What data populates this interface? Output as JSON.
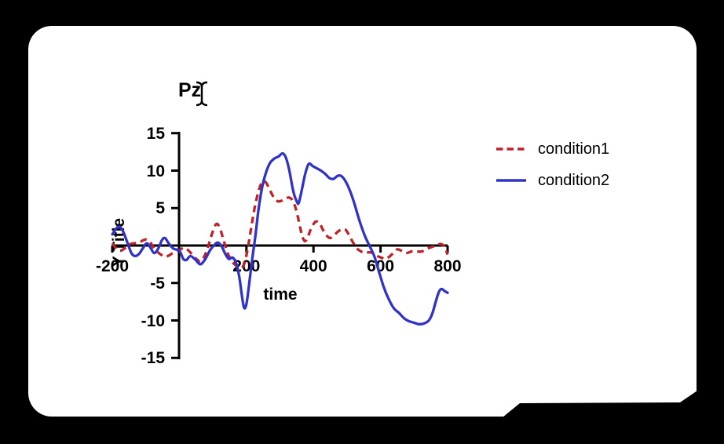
{
  "window": {
    "background": "#000000",
    "card_color": "#ffffff"
  },
  "icons": {
    "text-cursor-icon": "I-beam"
  },
  "chart_data": {
    "type": "line",
    "title": "Pz",
    "xlabel": "time",
    "ylabel": "Y Title",
    "xlim": [
      -200,
      800
    ],
    "ylim": [
      -15,
      15
    ],
    "x_ticks": [
      -200,
      200,
      400,
      600,
      800
    ],
    "y_ticks": [
      15,
      10,
      5,
      -5,
      -10,
      -15
    ],
    "grid": false,
    "legend_position": "top-right",
    "axis_color": "#000000",
    "series": [
      {
        "name": "condition1",
        "color": "#c02128",
        "style": "dashed",
        "points": [
          [
            -200,
            0.3
          ],
          [
            -190,
            -0.3
          ],
          [
            -180,
            -0.7
          ],
          [
            -170,
            -0.6
          ],
          [
            -158,
            -0.2
          ],
          [
            -146,
            0.2
          ],
          [
            -134,
            0.3
          ],
          [
            -120,
            0.4
          ],
          [
            -108,
            0.7
          ],
          [
            -98,
            0.8
          ],
          [
            -88,
            0.5
          ],
          [
            -76,
            -0.3
          ],
          [
            -64,
            -0.9
          ],
          [
            -52,
            -1.3
          ],
          [
            -42,
            -1.5
          ],
          [
            -30,
            -1.3
          ],
          [
            -16,
            -0.9
          ],
          [
            0,
            -0.6
          ],
          [
            14,
            -0.3
          ],
          [
            28,
            -0.7
          ],
          [
            42,
            -1.4
          ],
          [
            56,
            -2.0
          ],
          [
            64,
            -2.1
          ],
          [
            74,
            -1.5
          ],
          [
            84,
            -0.4
          ],
          [
            94,
            1.1
          ],
          [
            104,
            2.4
          ],
          [
            112,
            2.9
          ],
          [
            121,
            2.3
          ],
          [
            130,
            1.0
          ],
          [
            140,
            -0.5
          ],
          [
            150,
            -1.6
          ],
          [
            162,
            -2.4
          ],
          [
            174,
            -2.8
          ],
          [
            184,
            -3.0
          ],
          [
            192,
            -2.6
          ],
          [
            200,
            -1.3
          ],
          [
            209,
            0.9
          ],
          [
            218,
            3.4
          ],
          [
            228,
            5.8
          ],
          [
            240,
            7.8
          ],
          [
            250,
            8.6
          ],
          [
            260,
            8.3
          ],
          [
            270,
            7.4
          ],
          [
            282,
            6.4
          ],
          [
            294,
            5.9
          ],
          [
            306,
            6.0
          ],
          [
            318,
            6.3
          ],
          [
            328,
            6.4
          ],
          [
            338,
            6.0
          ],
          [
            348,
            4.8
          ],
          [
            358,
            2.9
          ],
          [
            366,
            1.3
          ],
          [
            374,
            0.6
          ],
          [
            382,
            1.0
          ],
          [
            392,
            2.2
          ],
          [
            402,
            3.0
          ],
          [
            408,
            3.2
          ],
          [
            418,
            3.0
          ],
          [
            428,
            2.1
          ],
          [
            440,
            1.3
          ],
          [
            450,
            1.0
          ],
          [
            462,
            1.4
          ],
          [
            474,
            1.9
          ],
          [
            486,
            2.2
          ],
          [
            496,
            2.1
          ],
          [
            506,
            1.4
          ],
          [
            518,
            0.4
          ],
          [
            530,
            -0.4
          ],
          [
            542,
            -0.8
          ],
          [
            554,
            -1.0
          ],
          [
            566,
            -0.9
          ],
          [
            578,
            -1.0
          ],
          [
            590,
            -1.4
          ],
          [
            602,
            -1.6
          ],
          [
            614,
            -1.8
          ],
          [
            626,
            -1.5
          ],
          [
            638,
            -1.0
          ],
          [
            650,
            -0.5
          ],
          [
            662,
            -0.7
          ],
          [
            674,
            -1.0
          ],
          [
            686,
            -0.9
          ],
          [
            698,
            -0.7
          ],
          [
            710,
            -0.8
          ],
          [
            722,
            -0.8
          ],
          [
            734,
            -0.6
          ],
          [
            746,
            -0.3
          ],
          [
            758,
            -0.1
          ],
          [
            770,
            0.1
          ],
          [
            780,
            0.2
          ],
          [
            790,
            -0.1
          ],
          [
            800,
            -1.2
          ]
        ]
      },
      {
        "name": "condition2",
        "color": "#3033c6",
        "style": "solid",
        "points": [
          [
            -200,
            1.5
          ],
          [
            -188,
            2.3
          ],
          [
            -178,
            2.5
          ],
          [
            -168,
            1.9
          ],
          [
            -155,
            0.4
          ],
          [
            -143,
            -1.0
          ],
          [
            -132,
            -1.4
          ],
          [
            -120,
            -1.1
          ],
          [
            -108,
            -0.3
          ],
          [
            -97,
            0.3
          ],
          [
            -86,
            -0.3
          ],
          [
            -75,
            -1.0
          ],
          [
            -63,
            -0.4
          ],
          [
            -52,
            0.7
          ],
          [
            -43,
            1.0
          ],
          [
            -32,
            0.3
          ],
          [
            -18,
            -0.4
          ],
          [
            0,
            -0.7
          ],
          [
            12,
            -1.8
          ],
          [
            22,
            -1.9
          ],
          [
            33,
            -1.4
          ],
          [
            48,
            -1.9
          ],
          [
            62,
            -2.5
          ],
          [
            76,
            -1.9
          ],
          [
            92,
            -0.6
          ],
          [
            105,
            0.1
          ],
          [
            115,
            0.4
          ],
          [
            126,
            -0.1
          ],
          [
            138,
            -1.2
          ],
          [
            148,
            -1.8
          ],
          [
            158,
            -1.6
          ],
          [
            168,
            -2.2
          ],
          [
            178,
            -4.0
          ],
          [
            186,
            -6.5
          ],
          [
            193,
            -8.3
          ],
          [
            200,
            -7.8
          ],
          [
            208,
            -5.2
          ],
          [
            217,
            -1.9
          ],
          [
            226,
            1.0
          ],
          [
            236,
            4.8
          ],
          [
            247,
            7.8
          ],
          [
            258,
            9.7
          ],
          [
            270,
            11.0
          ],
          [
            283,
            11.6
          ],
          [
            296,
            11.9
          ],
          [
            308,
            12.3
          ],
          [
            318,
            11.7
          ],
          [
            328,
            10.0
          ],
          [
            340,
            7.2
          ],
          [
            350,
            5.9
          ],
          [
            356,
            5.7
          ],
          [
            366,
            7.6
          ],
          [
            376,
            9.7
          ],
          [
            386,
            10.9
          ],
          [
            398,
            10.6
          ],
          [
            410,
            10.3
          ],
          [
            422,
            10.0
          ],
          [
            434,
            9.6
          ],
          [
            448,
            9.0
          ],
          [
            460,
            8.9
          ],
          [
            472,
            9.3
          ],
          [
            482,
            9.3
          ],
          [
            494,
            8.7
          ],
          [
            508,
            7.4
          ],
          [
            522,
            5.6
          ],
          [
            538,
            3.2
          ],
          [
            554,
            1.2
          ],
          [
            568,
            -0.1
          ],
          [
            582,
            -1.5
          ],
          [
            596,
            -3.6
          ],
          [
            610,
            -5.6
          ],
          [
            625,
            -7.2
          ],
          [
            640,
            -8.4
          ],
          [
            655,
            -9.0
          ],
          [
            670,
            -9.7
          ],
          [
            685,
            -10.1
          ],
          [
            700,
            -10.3
          ],
          [
            715,
            -10.5
          ],
          [
            730,
            -10.4
          ],
          [
            744,
            -10.0
          ],
          [
            755,
            -9.0
          ],
          [
            764,
            -7.6
          ],
          [
            774,
            -6.2
          ],
          [
            782,
            -5.8
          ],
          [
            792,
            -6.1
          ],
          [
            800,
            -6.3
          ]
        ]
      }
    ]
  }
}
